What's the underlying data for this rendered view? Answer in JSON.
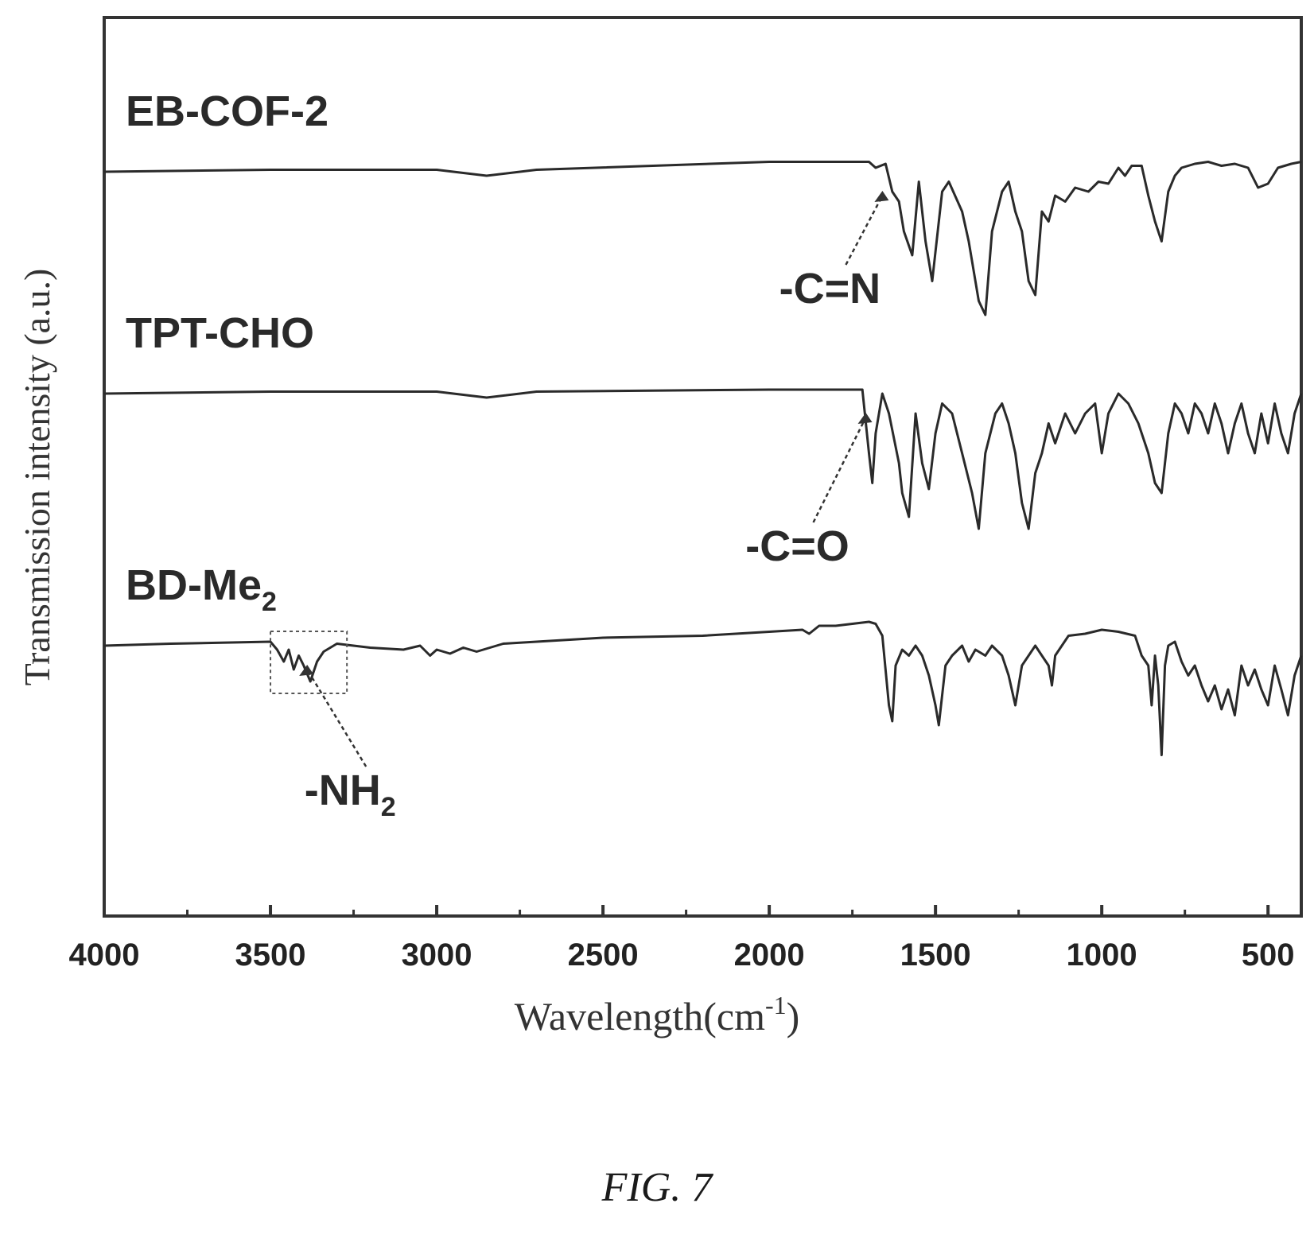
{
  "chart_data": {
    "type": "line",
    "title": "",
    "xlabel": "Wavelength(cm",
    "xlabel_superscript": "-1",
    "xlabel_close": ")",
    "ylabel": "Transmission intensity (a.u.)",
    "xlim": [
      4000,
      400
    ],
    "x_reversed": true,
    "y_ticks_shown": false,
    "grid": false,
    "x_ticks": [
      4000,
      3500,
      3000,
      2500,
      2000,
      1500,
      1000,
      500
    ],
    "x_minor_ticks": [
      3750,
      3250,
      2750,
      2250,
      1750,
      1250,
      750
    ],
    "series": [
      {
        "name": "EB-COF-2",
        "name_main": "EB-COF-2",
        "name_sub": "",
        "offset": 2,
        "points": [
          [
            4000,
            0
          ],
          [
            3500,
            0.01
          ],
          [
            3000,
            0.01
          ],
          [
            2850,
            -0.02
          ],
          [
            2700,
            0.01
          ],
          [
            2000,
            0.05
          ],
          [
            1700,
            0.05
          ],
          [
            1680,
            0.02
          ],
          [
            1650,
            0.04
          ],
          [
            1630,
            -0.1
          ],
          [
            1610,
            -0.15
          ],
          [
            1595,
            -0.3
          ],
          [
            1570,
            -0.42
          ],
          [
            1550,
            -0.05
          ],
          [
            1530,
            -0.35
          ],
          [
            1510,
            -0.55
          ],
          [
            1480,
            -0.1
          ],
          [
            1460,
            -0.05
          ],
          [
            1420,
            -0.2
          ],
          [
            1400,
            -0.35
          ],
          [
            1370,
            -0.65
          ],
          [
            1350,
            -0.72
          ],
          [
            1330,
            -0.3
          ],
          [
            1300,
            -0.1
          ],
          [
            1280,
            -0.05
          ],
          [
            1260,
            -0.2
          ],
          [
            1240,
            -0.3
          ],
          [
            1220,
            -0.55
          ],
          [
            1200,
            -0.62
          ],
          [
            1180,
            -0.2
          ],
          [
            1160,
            -0.25
          ],
          [
            1140,
            -0.12
          ],
          [
            1110,
            -0.15
          ],
          [
            1080,
            -0.08
          ],
          [
            1040,
            -0.1
          ],
          [
            1010,
            -0.05
          ],
          [
            980,
            -0.06
          ],
          [
            950,
            0.02
          ],
          [
            930,
            -0.02
          ],
          [
            910,
            0.03
          ],
          [
            880,
            0.03
          ],
          [
            860,
            -0.12
          ],
          [
            840,
            -0.25
          ],
          [
            820,
            -0.35
          ],
          [
            800,
            -0.1
          ],
          [
            780,
            -0.02
          ],
          [
            760,
            0.02
          ],
          [
            720,
            0.04
          ],
          [
            680,
            0.05
          ],
          [
            640,
            0.03
          ],
          [
            600,
            0.04
          ],
          [
            560,
            0.02
          ],
          [
            530,
            -0.08
          ],
          [
            500,
            -0.06
          ],
          [
            470,
            0.02
          ],
          [
            430,
            0.04
          ],
          [
            400,
            0.05
          ]
        ]
      },
      {
        "name": "TPT-CHO",
        "name_main": "TPT-CHO",
        "name_sub": "",
        "offset": 1,
        "points": [
          [
            4000,
            0
          ],
          [
            3500,
            0.01
          ],
          [
            3000,
            0.01
          ],
          [
            2850,
            -0.02
          ],
          [
            2700,
            0.01
          ],
          [
            2000,
            0.02
          ],
          [
            1720,
            0.02
          ],
          [
            1700,
            -0.3
          ],
          [
            1690,
            -0.45
          ],
          [
            1680,
            -0.2
          ],
          [
            1660,
            0.0
          ],
          [
            1640,
            -0.1
          ],
          [
            1610,
            -0.35
          ],
          [
            1600,
            -0.5
          ],
          [
            1580,
            -0.62
          ],
          [
            1560,
            -0.1
          ],
          [
            1540,
            -0.35
          ],
          [
            1520,
            -0.48
          ],
          [
            1500,
            -0.2
          ],
          [
            1480,
            -0.05
          ],
          [
            1450,
            -0.1
          ],
          [
            1420,
            -0.3
          ],
          [
            1390,
            -0.5
          ],
          [
            1370,
            -0.68
          ],
          [
            1350,
            -0.3
          ],
          [
            1320,
            -0.1
          ],
          [
            1300,
            -0.05
          ],
          [
            1280,
            -0.15
          ],
          [
            1260,
            -0.3
          ],
          [
            1240,
            -0.55
          ],
          [
            1220,
            -0.68
          ],
          [
            1200,
            -0.4
          ],
          [
            1180,
            -0.3
          ],
          [
            1160,
            -0.15
          ],
          [
            1140,
            -0.25
          ],
          [
            1110,
            -0.1
          ],
          [
            1080,
            -0.2
          ],
          [
            1050,
            -0.1
          ],
          [
            1020,
            -0.05
          ],
          [
            1000,
            -0.3
          ],
          [
            980,
            -0.1
          ],
          [
            950,
            0.0
          ],
          [
            920,
            -0.05
          ],
          [
            890,
            -0.15
          ],
          [
            860,
            -0.3
          ],
          [
            840,
            -0.45
          ],
          [
            820,
            -0.5
          ],
          [
            800,
            -0.2
          ],
          [
            780,
            -0.05
          ],
          [
            760,
            -0.1
          ],
          [
            740,
            -0.2
          ],
          [
            720,
            -0.05
          ],
          [
            700,
            -0.1
          ],
          [
            680,
            -0.2
          ],
          [
            660,
            -0.05
          ],
          [
            640,
            -0.15
          ],
          [
            620,
            -0.3
          ],
          [
            600,
            -0.15
          ],
          [
            580,
            -0.05
          ],
          [
            560,
            -0.2
          ],
          [
            540,
            -0.3
          ],
          [
            520,
            -0.1
          ],
          [
            500,
            -0.25
          ],
          [
            480,
            -0.05
          ],
          [
            460,
            -0.2
          ],
          [
            440,
            -0.3
          ],
          [
            420,
            -0.1
          ],
          [
            400,
            0.0
          ]
        ]
      },
      {
        "name": "BD-Me2",
        "name_main": "BD-Me",
        "name_sub": "2",
        "offset": 0,
        "points": [
          [
            4000,
            0
          ],
          [
            3800,
            0.01
          ],
          [
            3500,
            0.02
          ],
          [
            3480,
            -0.02
          ],
          [
            3460,
            -0.08
          ],
          [
            3445,
            -0.02
          ],
          [
            3430,
            -0.12
          ],
          [
            3415,
            -0.05
          ],
          [
            3400,
            -0.1
          ],
          [
            3380,
            -0.18
          ],
          [
            3360,
            -0.08
          ],
          [
            3340,
            -0.03
          ],
          [
            3300,
            0.01
          ],
          [
            3200,
            -0.01
          ],
          [
            3100,
            -0.02
          ],
          [
            3050,
            0.0
          ],
          [
            3020,
            -0.05
          ],
          [
            3000,
            -0.02
          ],
          [
            2960,
            -0.04
          ],
          [
            2920,
            -0.01
          ],
          [
            2880,
            -0.03
          ],
          [
            2800,
            0.01
          ],
          [
            2500,
            0.04
          ],
          [
            2200,
            0.05
          ],
          [
            2000,
            0.07
          ],
          [
            1900,
            0.08
          ],
          [
            1880,
            0.06
          ],
          [
            1850,
            0.1
          ],
          [
            1800,
            0.1
          ],
          [
            1700,
            0.12
          ],
          [
            1680,
            0.11
          ],
          [
            1660,
            0.05
          ],
          [
            1640,
            -0.3
          ],
          [
            1630,
            -0.38
          ],
          [
            1620,
            -0.1
          ],
          [
            1600,
            -0.02
          ],
          [
            1580,
            -0.05
          ],
          [
            1560,
            0.0
          ],
          [
            1540,
            -0.05
          ],
          [
            1520,
            -0.15
          ],
          [
            1500,
            -0.3
          ],
          [
            1490,
            -0.4
          ],
          [
            1470,
            -0.1
          ],
          [
            1450,
            -0.05
          ],
          [
            1420,
            0.0
          ],
          [
            1400,
            -0.08
          ],
          [
            1380,
            -0.02
          ],
          [
            1350,
            -0.05
          ],
          [
            1330,
            0.0
          ],
          [
            1300,
            -0.05
          ],
          [
            1280,
            -0.15
          ],
          [
            1260,
            -0.3
          ],
          [
            1240,
            -0.1
          ],
          [
            1220,
            -0.05
          ],
          [
            1200,
            0.0
          ],
          [
            1180,
            -0.05
          ],
          [
            1160,
            -0.1
          ],
          [
            1150,
            -0.2
          ],
          [
            1140,
            -0.05
          ],
          [
            1100,
            0.05
          ],
          [
            1050,
            0.06
          ],
          [
            1000,
            0.08
          ],
          [
            950,
            0.07
          ],
          [
            900,
            0.05
          ],
          [
            880,
            -0.05
          ],
          [
            860,
            -0.1
          ],
          [
            850,
            -0.3
          ],
          [
            840,
            -0.05
          ],
          [
            830,
            -0.2
          ],
          [
            820,
            -0.55
          ],
          [
            810,
            -0.1
          ],
          [
            800,
            0.0
          ],
          [
            780,
            0.02
          ],
          [
            760,
            -0.08
          ],
          [
            740,
            -0.15
          ],
          [
            720,
            -0.1
          ],
          [
            700,
            -0.2
          ],
          [
            680,
            -0.28
          ],
          [
            660,
            -0.2
          ],
          [
            640,
            -0.32
          ],
          [
            620,
            -0.22
          ],
          [
            600,
            -0.35
          ],
          [
            580,
            -0.1
          ],
          [
            560,
            -0.2
          ],
          [
            540,
            -0.12
          ],
          [
            520,
            -0.22
          ],
          [
            500,
            -0.3
          ],
          [
            480,
            -0.1
          ],
          [
            460,
            -0.22
          ],
          [
            440,
            -0.35
          ],
          [
            420,
            -0.15
          ],
          [
            400,
            -0.05
          ]
        ]
      }
    ],
    "annotations": [
      {
        "text": "-C=N",
        "sub": "",
        "x": 1650,
        "series": "EB-COF-2"
      },
      {
        "text": "-C=O",
        "sub": "",
        "x": 1700,
        "series": "TPT-CHO"
      },
      {
        "text": "-NH",
        "sub": "2",
        "x": 3380,
        "series": "BD-Me2",
        "boxed_range": [
          3500,
          3270
        ]
      }
    ],
    "caption": "FIG. 7"
  }
}
